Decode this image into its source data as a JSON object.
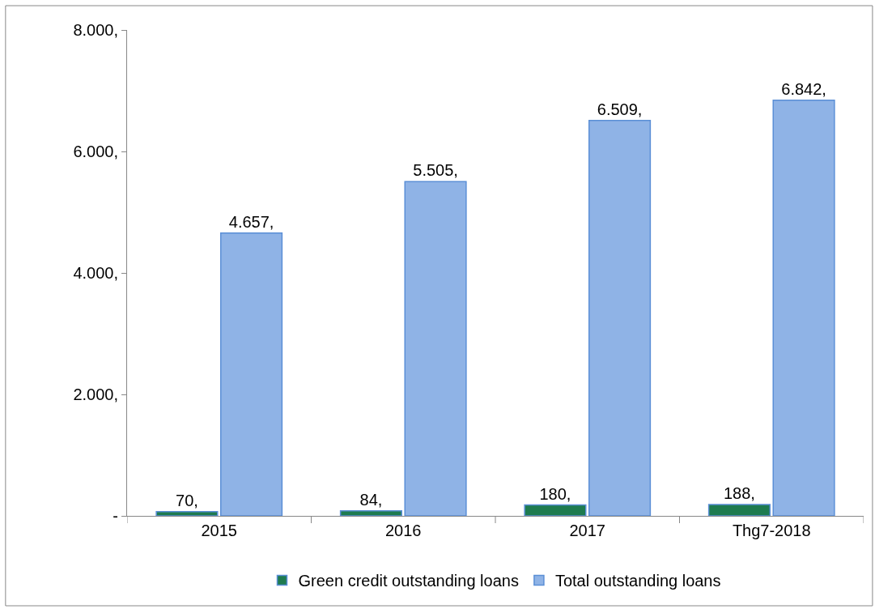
{
  "chart_data": {
    "type": "bar",
    "categories": [
      "2015",
      "2016",
      "2017",
      "Thg7-2018"
    ],
    "series": [
      {
        "name": "Green credit outstanding loans",
        "color": "#1e7b4f",
        "values": [
          70,
          84,
          180,
          188
        ],
        "value_labels": [
          "70,",
          "84,",
          "180,",
          "188,"
        ]
      },
      {
        "name": "Total outstanding loans",
        "color": "#8fb3e6",
        "values": [
          4657,
          5505,
          6509,
          6842
        ],
        "value_labels": [
          "4.657,",
          "5.505,",
          "6.509,",
          "6.842,"
        ]
      }
    ],
    "ylim": [
      0,
      8000
    ],
    "yticks": [
      {
        "value": 0,
        "label": "-"
      },
      {
        "value": 2000,
        "label": "2.000,"
      },
      {
        "value": 4000,
        "label": "4.000,"
      },
      {
        "value": 6000,
        "label": "6.000,"
      },
      {
        "value": 8000,
        "label": "8.000,"
      }
    ],
    "legend": "bottom"
  }
}
